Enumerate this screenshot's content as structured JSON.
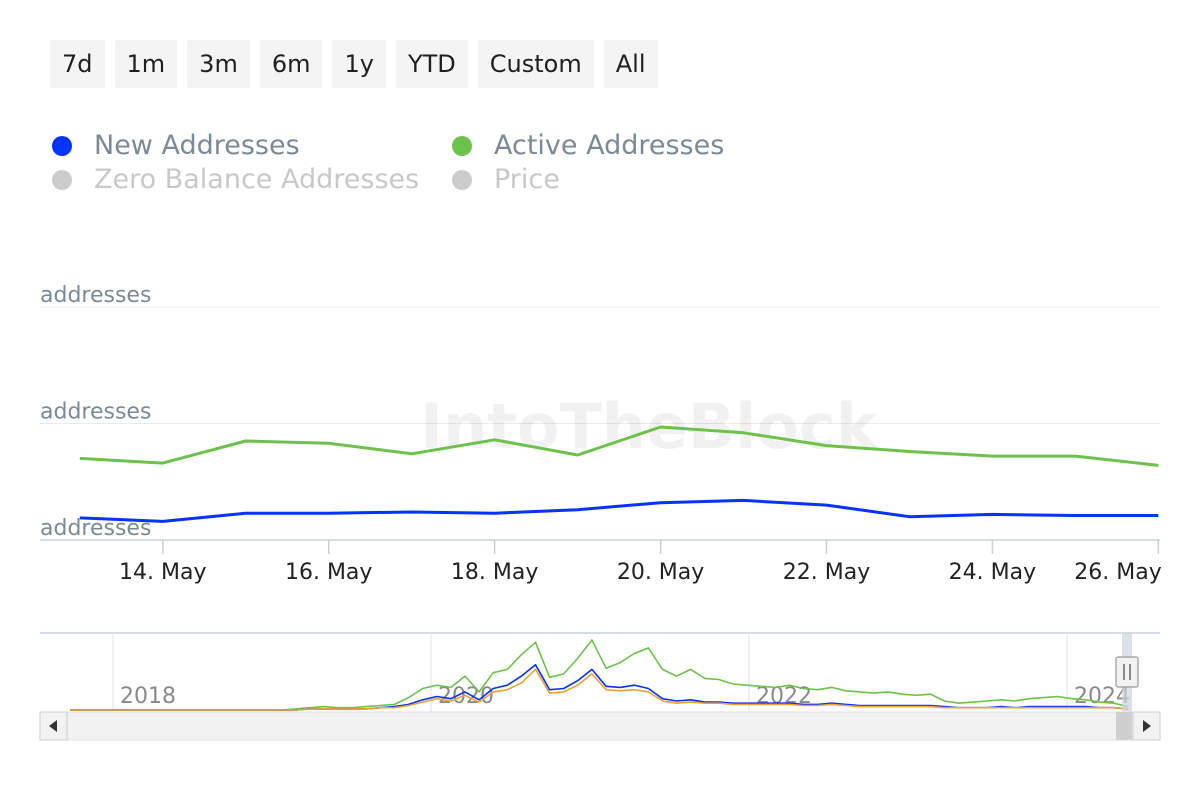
{
  "range_selector": {
    "buttons": [
      "7d",
      "1m",
      "3m",
      "6m",
      "1y",
      "YTD",
      "Custom",
      "All"
    ]
  },
  "legend": {
    "items": [
      {
        "label": "New Addresses",
        "color": "#0433ff",
        "visible": true
      },
      {
        "label": "Active Addresses",
        "color": "#6cc24a",
        "visible": true
      },
      {
        "label": "Zero Balance Addresses",
        "color": "#cccccc",
        "visible": false
      },
      {
        "label": "Price",
        "color": "#cccccc",
        "visible": false
      }
    ]
  },
  "watermark": "IntoTheBlock",
  "chart_data": {
    "type": "line",
    "x": [
      "13 May",
      "14 May",
      "15 May",
      "16 May",
      "17 May",
      "18 May",
      "19 May",
      "20 May",
      "21 May",
      "22 May",
      "23 May",
      "24 May",
      "25 May",
      "26 May"
    ],
    "x_tick_labels": [
      "14. May",
      "16. May",
      "18. May",
      "20. May",
      "22. May",
      "24. May",
      "26. May"
    ],
    "y_tick_labels": [
      "addresses",
      "addresses",
      "addresses"
    ],
    "ylim": [
      0,
      2
    ],
    "grid": true,
    "series": [
      {
        "name": "New Addresses",
        "color": "#0433ff",
        "values": [
          0.19,
          0.16,
          0.23,
          0.23,
          0.24,
          0.23,
          0.26,
          0.32,
          0.34,
          0.3,
          0.2,
          0.22,
          0.21,
          0.21
        ]
      },
      {
        "name": "Active Addresses",
        "color": "#6cc24a",
        "values": [
          0.7,
          0.66,
          0.85,
          0.83,
          0.74,
          0.86,
          0.73,
          0.97,
          0.92,
          0.81,
          0.76,
          0.72,
          0.72,
          0.64
        ]
      }
    ],
    "navigator": {
      "x_tick_labels": [
        "2018",
        "2020",
        "2022",
        "2024"
      ],
      "series": [
        {
          "color": "#6cc24a",
          "values": [
            0,
            0,
            0,
            0,
            0,
            0,
            0,
            0,
            0,
            0,
            0,
            0,
            0,
            0,
            0,
            0,
            1,
            2,
            3,
            2,
            2,
            3,
            4,
            5,
            11,
            19,
            22,
            20,
            30,
            16,
            33,
            36,
            49,
            60,
            29,
            32,
            46,
            62,
            37,
            42,
            50,
            55,
            36,
            30,
            36,
            28,
            27,
            23,
            22,
            21,
            20,
            22,
            19,
            18,
            20,
            17,
            16,
            15,
            16,
            14,
            13,
            14,
            8,
            6,
            7,
            8,
            9,
            8,
            10,
            11,
            12,
            10,
            9,
            7,
            6,
            3
          ]
        },
        {
          "color": "#0433ff",
          "values": [
            0,
            0,
            0,
            0,
            0,
            0,
            0,
            0,
            0,
            0,
            0,
            0,
            0,
            0,
            0,
            0,
            0,
            1,
            1,
            1,
            1,
            1,
            2,
            3,
            5,
            9,
            12,
            10,
            16,
            9,
            19,
            22,
            30,
            40,
            18,
            19,
            26,
            36,
            21,
            20,
            22,
            19,
            10,
            8,
            9,
            7,
            7,
            6,
            6,
            6,
            6,
            6,
            5,
            5,
            6,
            5,
            4,
            4,
            4,
            4,
            4,
            4,
            3,
            2,
            2,
            2,
            3,
            2,
            3,
            3,
            3,
            3,
            3,
            2,
            2,
            1
          ]
        },
        {
          "color": "#f0a030",
          "values": [
            0,
            0,
            0,
            0,
            0,
            0,
            0,
            0,
            0,
            0,
            0,
            0,
            0,
            0,
            0,
            0,
            0,
            1,
            1,
            1,
            1,
            1,
            2,
            2,
            4,
            7,
            10,
            8,
            13,
            7,
            16,
            18,
            24,
            36,
            15,
            16,
            22,
            32,
            18,
            17,
            18,
            16,
            8,
            6,
            7,
            6,
            6,
            5,
            5,
            5,
            5,
            5,
            4,
            4,
            5,
            4,
            3,
            3,
            3,
            3,
            3,
            3,
            2,
            2,
            2,
            2,
            2,
            2,
            2,
            2,
            2,
            2,
            2,
            2,
            2,
            1
          ]
        }
      ]
    }
  }
}
